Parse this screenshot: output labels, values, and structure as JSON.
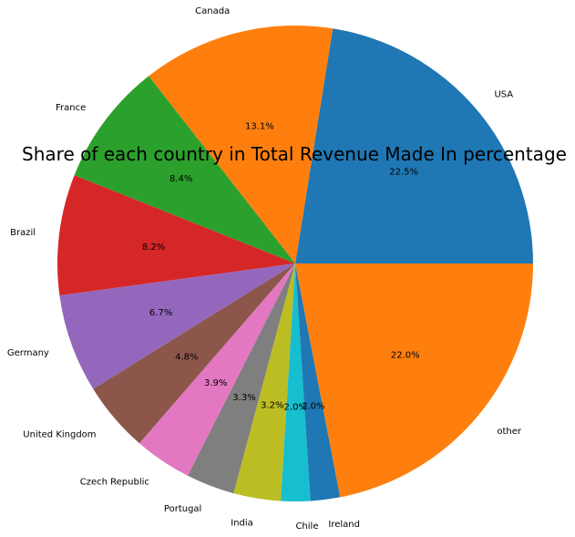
{
  "chart_data": {
    "type": "pie",
    "title": "Share of each country in Total Revenue Made In percentage",
    "start_angle_deg": 0,
    "direction": "counterclockwise",
    "slices": [
      {
        "label": "USA",
        "value": 22.5,
        "pct_label": "22.5%",
        "color": "#1f77b4"
      },
      {
        "label": "Canada",
        "value": 13.1,
        "pct_label": "13.1%",
        "color": "#ff7f0e"
      },
      {
        "label": "France",
        "value": 8.4,
        "pct_label": "8.4%",
        "color": "#2ca02c"
      },
      {
        "label": "Brazil",
        "value": 8.2,
        "pct_label": "8.2%",
        "color": "#d62728"
      },
      {
        "label": "Germany",
        "value": 6.7,
        "pct_label": "6.7%",
        "color": "#9467bd"
      },
      {
        "label": "United Kingdom",
        "value": 4.8,
        "pct_label": "4.8%",
        "color": "#8c564b"
      },
      {
        "label": "Czech Republic",
        "value": 3.9,
        "pct_label": "3.9%",
        "color": "#e377c2"
      },
      {
        "label": "Portugal",
        "value": 3.3,
        "pct_label": "3.3%",
        "color": "#7f7f7f"
      },
      {
        "label": "India",
        "value": 3.2,
        "pct_label": "3.2%",
        "color": "#bcbd22"
      },
      {
        "label": "Chile",
        "value": 2.0,
        "pct_label": "2.0%",
        "color": "#17becf"
      },
      {
        "label": "Ireland",
        "value": 2.0,
        "pct_label": "2.0%",
        "color": "#1f77b4"
      },
      {
        "label": "other",
        "value": 22.0,
        "pct_label": "22.0%",
        "color": "#ff7f0e"
      }
    ]
  }
}
